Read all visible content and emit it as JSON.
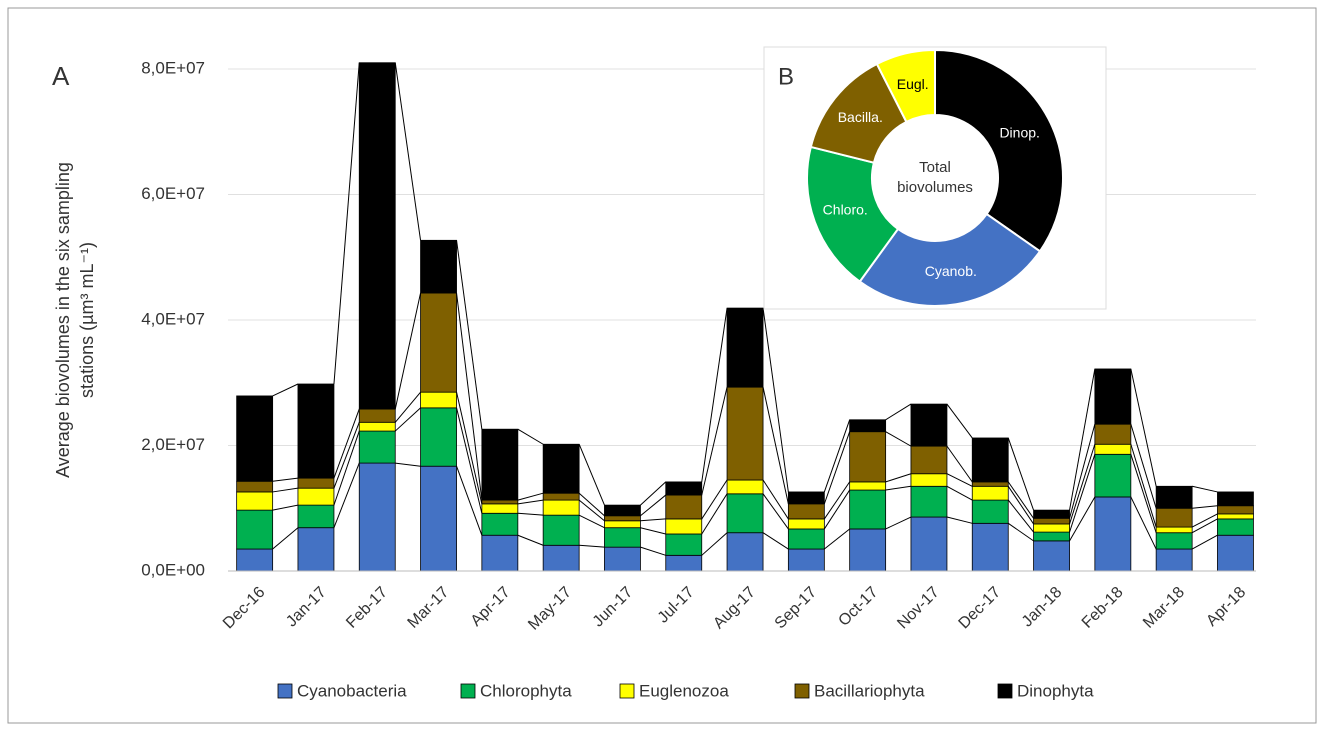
{
  "chart_data": [
    {
      "type": "stacked-bar",
      "panel_label": "A",
      "y_label": [
        "Average biovolumes in the six sampling",
        "stations (µm³ mL⁻¹)"
      ],
      "categories": [
        "Dec-16",
        "Jan-17",
        "Feb-17",
        "Mar-17",
        "Apr-17",
        "May-17",
        "Jun-17",
        "Jul-17",
        "Aug-17",
        "Sep-17",
        "Oct-17",
        "Nov-17",
        "Dec-17",
        "Jan-18",
        "Feb-18",
        "Mar-18",
        "Apr-18"
      ],
      "series": [
        {
          "name": "Cyanobacteria",
          "color": "#4472c4",
          "values": [
            3500000,
            6900000,
            17200000,
            16700000,
            5700000,
            4100000,
            3800000,
            2500000,
            6100000,
            3500000,
            6700000,
            8600000,
            7600000,
            4800000,
            11800000,
            3500000,
            5700000
          ]
        },
        {
          "name": "Chlorophyta",
          "color": "#00b050",
          "values": [
            6200000,
            3600000,
            5100000,
            9300000,
            3500000,
            4800000,
            3100000,
            3400000,
            6200000,
            3200000,
            6200000,
            4900000,
            3700000,
            1400000,
            6800000,
            2600000,
            2600000
          ]
        },
        {
          "name": "Euglenozoa",
          "color": "#ffff00",
          "values": [
            2900000,
            2700000,
            1400000,
            2500000,
            1500000,
            2400000,
            1100000,
            2400000,
            2200000,
            1600000,
            1300000,
            2000000,
            2200000,
            1300000,
            1600000,
            900000,
            800000
          ]
        },
        {
          "name": "Bacillariophyta",
          "color": "#7f6000",
          "values": [
            1700000,
            1600000,
            2100000,
            15800000,
            600000,
            1100000,
            800000,
            3800000,
            14800000,
            2400000,
            8000000,
            4400000,
            700000,
            900000,
            3200000,
            3000000,
            1300000
          ]
        },
        {
          "name": "Dinophyta",
          "color": "#000000",
          "values": [
            13600000,
            15000000,
            55200000,
            8400000,
            11300000,
            7800000,
            1700000,
            2100000,
            12600000,
            1900000,
            1900000,
            6700000,
            7000000,
            1300000,
            8800000,
            3500000,
            2200000
          ]
        }
      ],
      "ylim": [
        0,
        80000000
      ],
      "yticks": [
        {
          "value": 0,
          "label": "0,0E+00"
        },
        {
          "value": 20000000,
          "label": "2,0E+07"
        },
        {
          "value": 40000000,
          "label": "4,0E+07"
        },
        {
          "value": 60000000,
          "label": "6,0E+07"
        },
        {
          "value": 80000000,
          "label": "8,0E+07"
        }
      ],
      "grid": true,
      "legend": "bottom"
    },
    {
      "type": "donut",
      "panel_label": "B",
      "center_label": [
        "Total",
        "biovolumes"
      ],
      "categories": [
        "Dinop.",
        "Cyanob.",
        "Chloro.",
        "Bacilla.",
        "Eugl."
      ],
      "colors": [
        "#000000",
        "#4472c4",
        "#00b050",
        "#7f6000",
        "#ffff00"
      ],
      "label_colors": [
        "#ffffff",
        "#ffffff",
        "#ffffff",
        "#ffffff",
        "#000000"
      ],
      "values": [
        34.7,
        25.3,
        18.9,
        13.6,
        7.5
      ]
    }
  ]
}
